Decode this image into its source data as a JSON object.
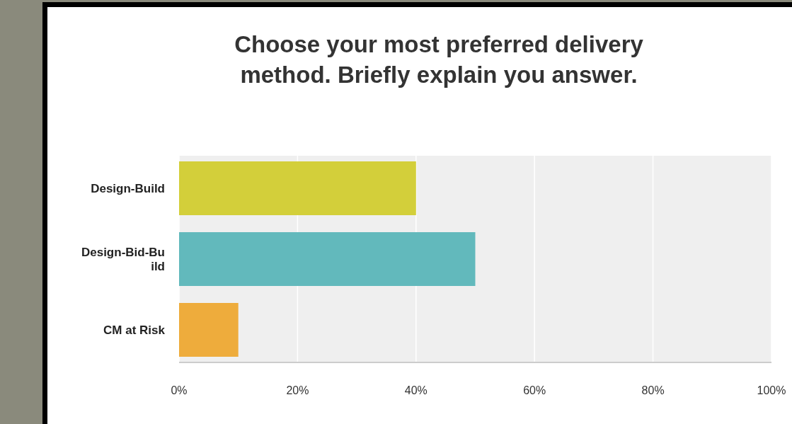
{
  "chart_data": {
    "type": "bar",
    "orientation": "horizontal",
    "title": "Choose your most preferred delivery method. Briefly explain you answer.",
    "categories": [
      "Design-Build",
      "Design-Bid-Build",
      "CM at Risk"
    ],
    "values": [
      40,
      50,
      10
    ],
    "colors": [
      "#d3cf3a",
      "#62b9bc",
      "#eeac3c"
    ],
    "xlim": [
      0,
      100
    ],
    "xticks": [
      {
        "value": 0,
        "label": "0%"
      },
      {
        "value": 20,
        "label": "20%"
      },
      {
        "value": 40,
        "label": "40%"
      },
      {
        "value": 60,
        "label": "60%"
      },
      {
        "value": 80,
        "label": "80%"
      },
      {
        "value": 100,
        "label": "100%"
      }
    ],
    "grid": "x"
  }
}
